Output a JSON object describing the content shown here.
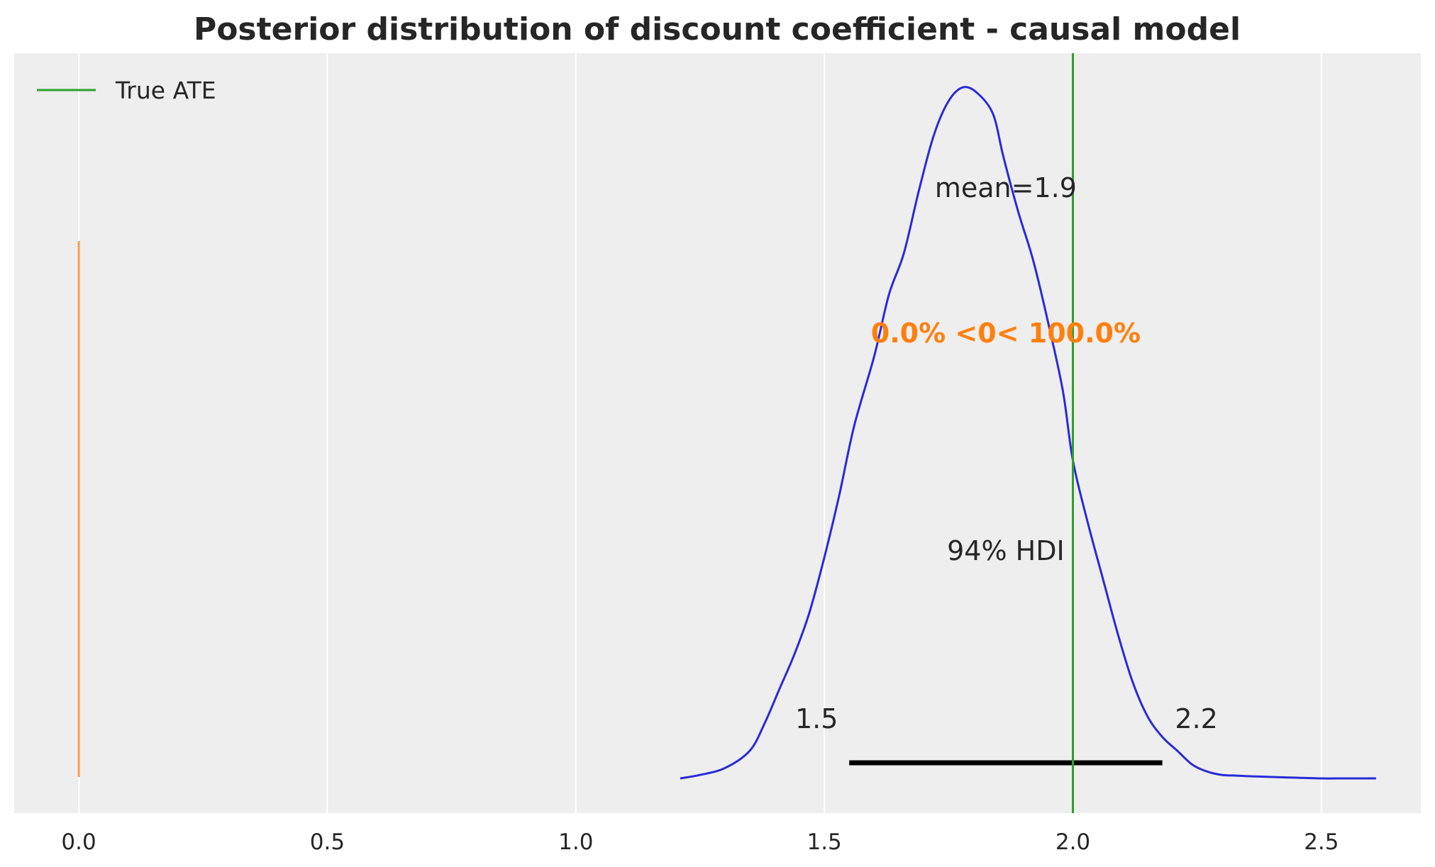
{
  "chart_data": {
    "type": "line",
    "title": "Posterior distribution of discount coefficient - causal model",
    "xlabel": "",
    "ylabel": "",
    "xlim": [
      -0.13,
      2.7
    ],
    "ylim": [
      0,
      1.0
    ],
    "xticks": [
      0.0,
      0.5,
      1.0,
      1.5,
      2.0,
      2.5
    ],
    "xtick_labels": [
      "0.0",
      "0.5",
      "1.0",
      "1.5",
      "2.0",
      "2.5"
    ],
    "grid": "vertical",
    "legend": {
      "placement": "top-left",
      "entries": [
        {
          "label": "True ATE",
          "color": "#2ca02c"
        }
      ]
    },
    "density": {
      "color": "#2a2ad8",
      "x": [
        1.21,
        1.25,
        1.3,
        1.35,
        1.38,
        1.41,
        1.44,
        1.47,
        1.5,
        1.53,
        1.56,
        1.6,
        1.63,
        1.66,
        1.69,
        1.72,
        1.75,
        1.78,
        1.81,
        1.84,
        1.86,
        1.89,
        1.92,
        1.95,
        1.98,
        2.0,
        2.03,
        2.06,
        2.09,
        2.12,
        2.15,
        2.18,
        2.21,
        2.24,
        2.27,
        2.3,
        2.33,
        2.36,
        2.4,
        2.45,
        2.5,
        2.55,
        2.61
      ],
      "y": [
        0.0,
        0.005,
        0.015,
        0.04,
        0.08,
        0.13,
        0.18,
        0.24,
        0.32,
        0.41,
        0.51,
        0.61,
        0.7,
        0.76,
        0.85,
        0.93,
        0.98,
        1.0,
        0.99,
        0.96,
        0.9,
        0.82,
        0.75,
        0.66,
        0.56,
        0.46,
        0.37,
        0.29,
        0.21,
        0.14,
        0.09,
        0.06,
        0.04,
        0.02,
        0.01,
        0.005,
        0.004,
        0.003,
        0.002,
        0.001,
        0.0,
        0.0,
        0.0
      ]
    },
    "true_ate": {
      "value": 2.0,
      "color": "#2ca02c",
      "label": "True ATE"
    },
    "ref_val": {
      "value": 0.0,
      "color": "#f5a05a",
      "text": "0.0% <0< 100.0%"
    },
    "mean": {
      "value": 1.9,
      "text": "mean=1.9"
    },
    "hdi": {
      "low": 1.55,
      "high": 2.18,
      "low_text": "1.5",
      "high_text": "2.2",
      "text": "94% HDI"
    }
  },
  "colors": {
    "plot_background": "#eeeeee",
    "grid": "#ffffff",
    "hdi_bar": "#000000"
  }
}
